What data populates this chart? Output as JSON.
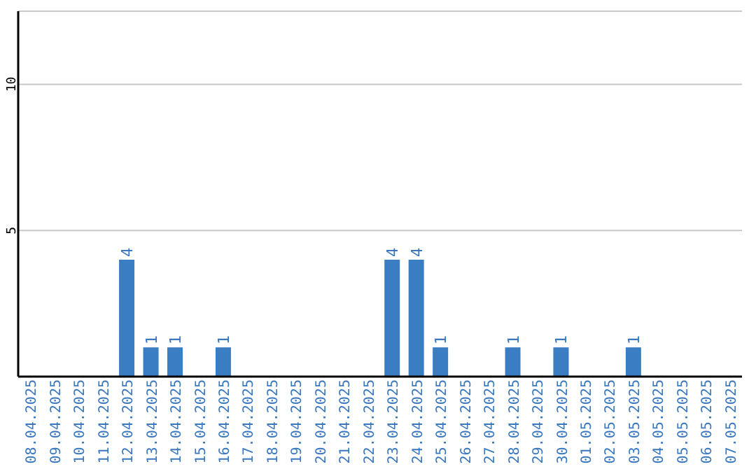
{
  "chart_data": {
    "type": "bar",
    "categories": [
      "08.04.2025",
      "09.04.2025",
      "10.04.2025",
      "11.04.2025",
      "12.04.2025",
      "13.04.2025",
      "14.04.2025",
      "15.04.2025",
      "16.04.2025",
      "17.04.2025",
      "18.04.2025",
      "19.04.2025",
      "20.04.2025",
      "21.04.2025",
      "22.04.2025",
      "23.04.2025",
      "24.04.2025",
      "25.04.2025",
      "26.04.2025",
      "27.04.2025",
      "28.04.2025",
      "29.04.2025",
      "30.04.2025",
      "01.05.2025",
      "02.05.2025",
      "03.05.2025",
      "04.05.2025",
      "05.05.2025",
      "06.05.2025",
      "07.05.2025"
    ],
    "values": [
      0,
      0,
      0,
      0,
      4,
      1,
      1,
      0,
      1,
      0,
      0,
      0,
      0,
      0,
      0,
      4,
      4,
      1,
      0,
      0,
      1,
      0,
      1,
      0,
      0,
      1,
      0,
      0,
      0,
      0
    ],
    "value_labels": [
      null,
      null,
      null,
      null,
      "4",
      "1",
      "1",
      null,
      "1",
      null,
      null,
      null,
      null,
      null,
      null,
      "4",
      "4",
      "1",
      null,
      null,
      "1",
      null,
      "1",
      null,
      null,
      "1",
      null,
      null,
      null,
      null
    ],
    "color": "#3b7dc2",
    "ylim": [
      0,
      12.5
    ],
    "yticks": [
      5,
      10
    ],
    "grid": "y"
  }
}
